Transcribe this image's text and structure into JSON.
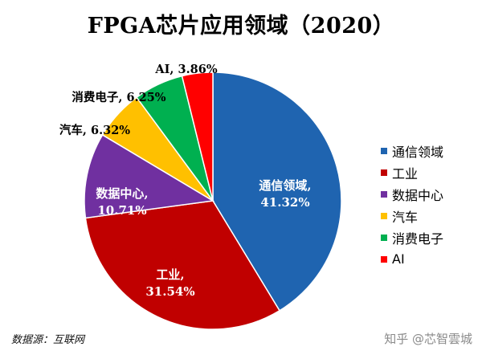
{
  "chart_data": {
    "type": "pie",
    "title": "FPGA芯片应用领域（2020）",
    "unit": "%",
    "series": [
      {
        "name": "",
        "values": [
          41.32,
          31.54,
          10.71,
          6.32,
          6.25,
          3.86
        ]
      }
    ],
    "categories": [
      "通信领域",
      "工业",
      "数据中心",
      "汽车",
      "消费电子",
      "AI"
    ],
    "data_labels": [
      [
        "通信领域,",
        "41.32%"
      ],
      [
        "工业,",
        "31.54%"
      ],
      [
        "数据中心,",
        "10.71%"
      ],
      [
        "汽车, 6.32%"
      ],
      [
        "消费电子, 6.25%"
      ],
      [
        "AI, 3.86%"
      ]
    ],
    "colors": [
      "#1f64b0",
      "#c00000",
      "#7030a0",
      "#ffc000",
      "#00b050",
      "#ff0000"
    ],
    "label_colors": [
      "#ffffff",
      "#ffffff",
      "#ffffff",
      "#000000",
      "#000000",
      "#000000"
    ],
    "start_angle_deg": 0,
    "direction": "clockwise",
    "legend_position": "right"
  },
  "source": "数据源：互联网",
  "watermark": "知乎 @芯智雲城"
}
